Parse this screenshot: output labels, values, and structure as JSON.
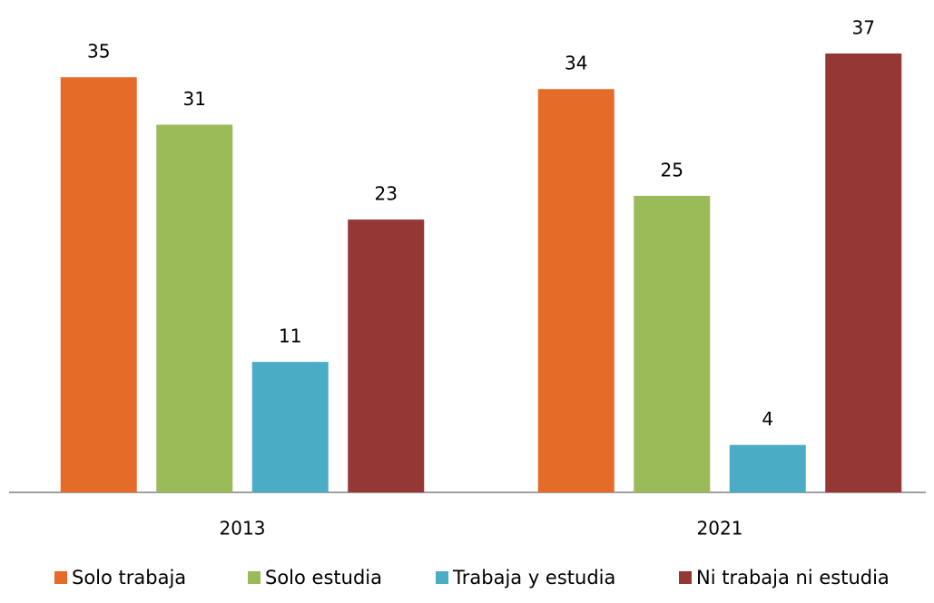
{
  "chart_data": {
    "type": "bar",
    "categories": [
      "2013",
      "2021"
    ],
    "series": [
      {
        "name": "Solo trabaja",
        "color": "#e46c28",
        "values": [
          35,
          34
        ]
      },
      {
        "name": "Solo estudia",
        "color": "#9bbb59",
        "values": [
          31,
          25
        ]
      },
      {
        "name": "Trabaja y estudia",
        "color": "#4bacc6",
        "values": [
          11,
          4
        ]
      },
      {
        "name": "Ni trabaja ni estudia",
        "color": "#953735",
        "values": [
          23,
          37
        ]
      }
    ],
    "legend": "bottom"
  }
}
